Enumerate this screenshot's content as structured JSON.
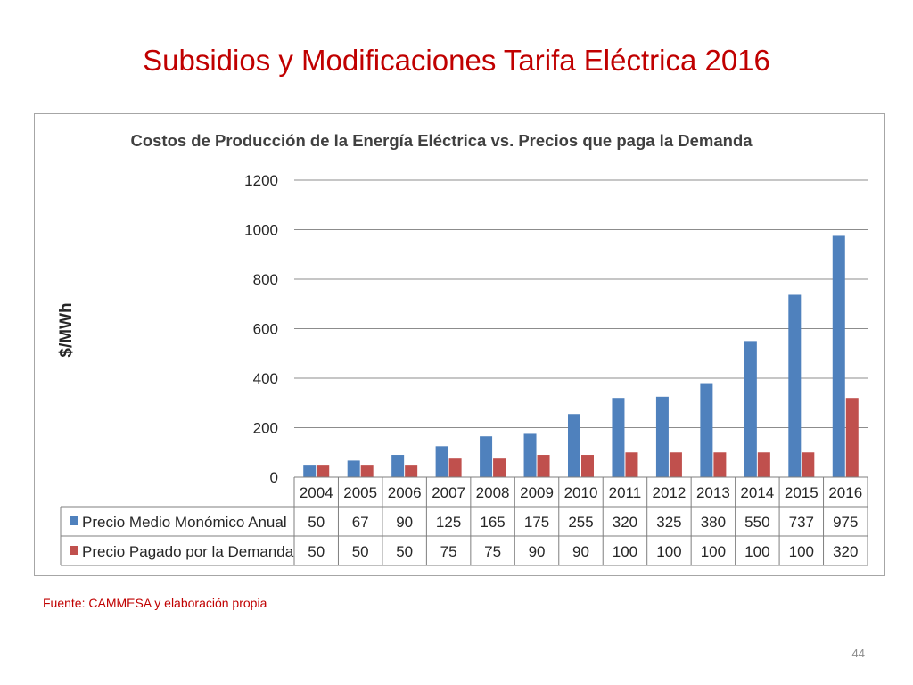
{
  "slide": {
    "title": "Subsidios y Modificaciones Tarifa Eléctrica 2016",
    "source": "Fuente: CAMMESA y elaboración propia",
    "page_number": "44"
  },
  "chart_data": {
    "type": "bar",
    "title": "Costos de Producción de la Energía Eléctrica vs. Precios que paga la Demanda",
    "xlabel": "",
    "ylabel": "$/MWh",
    "ylim": [
      0,
      1200
    ],
    "yticks": [
      0,
      200,
      400,
      600,
      800,
      1000,
      1200
    ],
    "grid": true,
    "legend": "data-table",
    "categories": [
      "2004",
      "2005",
      "2006",
      "2007",
      "2008",
      "2009",
      "2010",
      "2011",
      "2012",
      "2013",
      "2014",
      "2015",
      "2016"
    ],
    "series": [
      {
        "name": "Precio Medio Monómico Anual",
        "color": "#4f81bd",
        "values": [
          50,
          67,
          90,
          125,
          165,
          175,
          255,
          320,
          325,
          380,
          550,
          737,
          975
        ]
      },
      {
        "name": "Precio Pagado por la Demanda",
        "color": "#c0504d",
        "values": [
          50,
          50,
          50,
          75,
          75,
          90,
          90,
          100,
          100,
          100,
          100,
          100,
          320
        ]
      }
    ]
  }
}
